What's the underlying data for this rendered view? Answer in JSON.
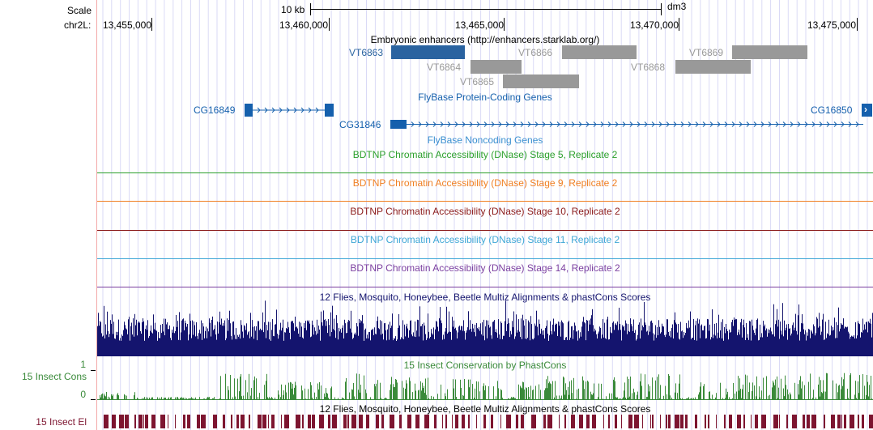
{
  "ruler": {
    "scale_label": "Scale",
    "scale_bar_label": "10 kb",
    "assembly": "dm3",
    "chrom_label": "chr2L:",
    "positions": [
      "13,455,000",
      "13,460,000",
      "13,465,000",
      "13,470,000",
      "13,475,000"
    ]
  },
  "tracks": {
    "enhancers": {
      "title": "Embryonic enhancers (http://enhancers.starklab.org/)",
      "items": [
        {
          "name": "VT6863",
          "selected": true
        },
        {
          "name": "VT6864",
          "selected": false
        },
        {
          "name": "VT6865",
          "selected": false
        },
        {
          "name": "VT6866",
          "selected": false
        },
        {
          "name": "VT6868",
          "selected": false
        },
        {
          "name": "VT6869",
          "selected": false
        }
      ]
    },
    "genes": {
      "title": "FlyBase Protein-Coding Genes",
      "items": [
        "CG16849",
        "CG31846",
        "CG16850"
      ],
      "next_arrow": "›"
    },
    "noncoding": {
      "title": "FlyBase Noncoding Genes"
    },
    "dnase": [
      {
        "title": "BDTNP Chromatin Accessibility (DNase) Stage 5, Replicate 2",
        "color": "#2ca02c"
      },
      {
        "title": "BDTNP Chromatin Accessibility (DNase) Stage 9, Replicate 2",
        "color": "#f07f22"
      },
      {
        "title": "BDTNP Chromatin Accessibility (DNase) Stage 10, Replicate 2",
        "color": "#8b1a1a"
      },
      {
        "title": "BDTNP Chromatin Accessibility (DNase) Stage 11, Replicate 2",
        "color": "#3fa7d6"
      },
      {
        "title": "BDTNP Chromatin Accessibility (DNase) Stage 14, Replicate 2",
        "color": "#7b3fa0"
      }
    ],
    "multiz": {
      "title": "12 Flies, Mosquito, Honeybee, Beetle Multiz Alignments & phastCons Scores",
      "color": "#14146e"
    },
    "phastcons": {
      "title": "15 Insect Conservation by PhastCons",
      "left_label": "15 Insect Cons",
      "axis_max": "1",
      "axis_min": "0",
      "color": "#3a8a3a"
    },
    "elements": {
      "title": "12 Flies, Mosquito, Honeybee, Beetle Multiz Alignments & phastCons Scores",
      "left_label": "15 Insect El",
      "color": "#7d1530"
    }
  },
  "colors": {
    "gene_blue": "#1560ad",
    "enhancer_selected": "#2a63a0",
    "enhancer_gray": "#999999",
    "gridline": "#d8d8f4",
    "left_border": "#f3a8a8"
  }
}
